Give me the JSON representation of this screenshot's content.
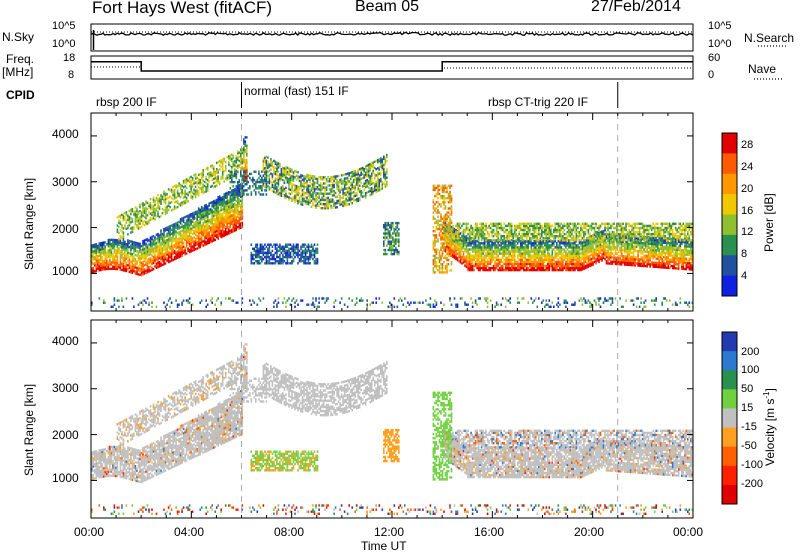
{
  "header": {
    "radar": "Fort Hays West (fitACF)",
    "beam": "Beam 05",
    "date": "27/Feb/2014"
  },
  "top_panels": {
    "nsky_label": "N.Sky",
    "nsky_ticks": [
      "10^5",
      "10^0"
    ],
    "nsearch_label": "N.Search",
    "nsearch_ticks": [
      "10^5",
      "10^0"
    ],
    "freq_label_1": "Freq.",
    "freq_label_2": "[MHz]",
    "freq_ticks": [
      "18",
      "8"
    ],
    "nave_label": "Nave",
    "nave_ticks": [
      "60",
      "0"
    ],
    "cpid_label": "CPID",
    "cpid_segments": [
      {
        "label": "rbsp 200 IF",
        "start": 0,
        "end": 6
      },
      {
        "label": "normal (fast) 151 IF",
        "start": 6,
        "end": 21
      },
      {
        "label": "rbsp CT-trig 220 IF",
        "start": 21,
        "end": 24
      }
    ],
    "freq_steps": [
      {
        "start": 0,
        "end": 2,
        "mhz": 15.5
      },
      {
        "start": 2,
        "end": 14,
        "mhz": 11.5
      },
      {
        "start": 14,
        "end": 24,
        "mhz": 15.5
      }
    ]
  },
  "chart_data": [
    {
      "type": "heatmap",
      "name": "power",
      "ylabel": "Slant Range [km]",
      "yticks": [
        1000,
        2000,
        3000,
        4000
      ],
      "ylim": [
        180,
        4500
      ],
      "xlim": [
        0,
        24
      ],
      "colorbar": {
        "label": "Power [dB]",
        "ticks": [
          "28",
          "24",
          "20",
          "16",
          "12",
          "8",
          "4"
        ],
        "colors": [
          "#e00000",
          "#ff5a00",
          "#ff9800",
          "#f0c800",
          "#90c030",
          "#2a9050",
          "#2050a0",
          "#1020e0"
        ]
      }
    },
    {
      "type": "heatmap",
      "name": "velocity",
      "ylabel": "Slant Range [km]",
      "yticks": [
        1000,
        2000,
        3000,
        4000
      ],
      "ylim": [
        180,
        4500
      ],
      "xlim": [
        0,
        24
      ],
      "xlabel": "Time UT",
      "xticks": [
        "00:00",
        "04:00",
        "08:00",
        "12:00",
        "16:00",
        "20:00",
        "00:00"
      ],
      "colorbar": {
        "label": "Velocity [m s",
        "label_sup": "-1",
        "label_end": "]",
        "ticks": [
          "200",
          "100",
          "50",
          "15",
          "-15",
          "-50",
          "-100",
          "-200"
        ],
        "colors": [
          "#203ab0",
          "#2a7ad0",
          "#2a9050",
          "#70d040",
          "#c0c0c0",
          "#ffa020",
          "#ff6000",
          "#ff2000",
          "#e00000"
        ]
      }
    }
  ]
}
